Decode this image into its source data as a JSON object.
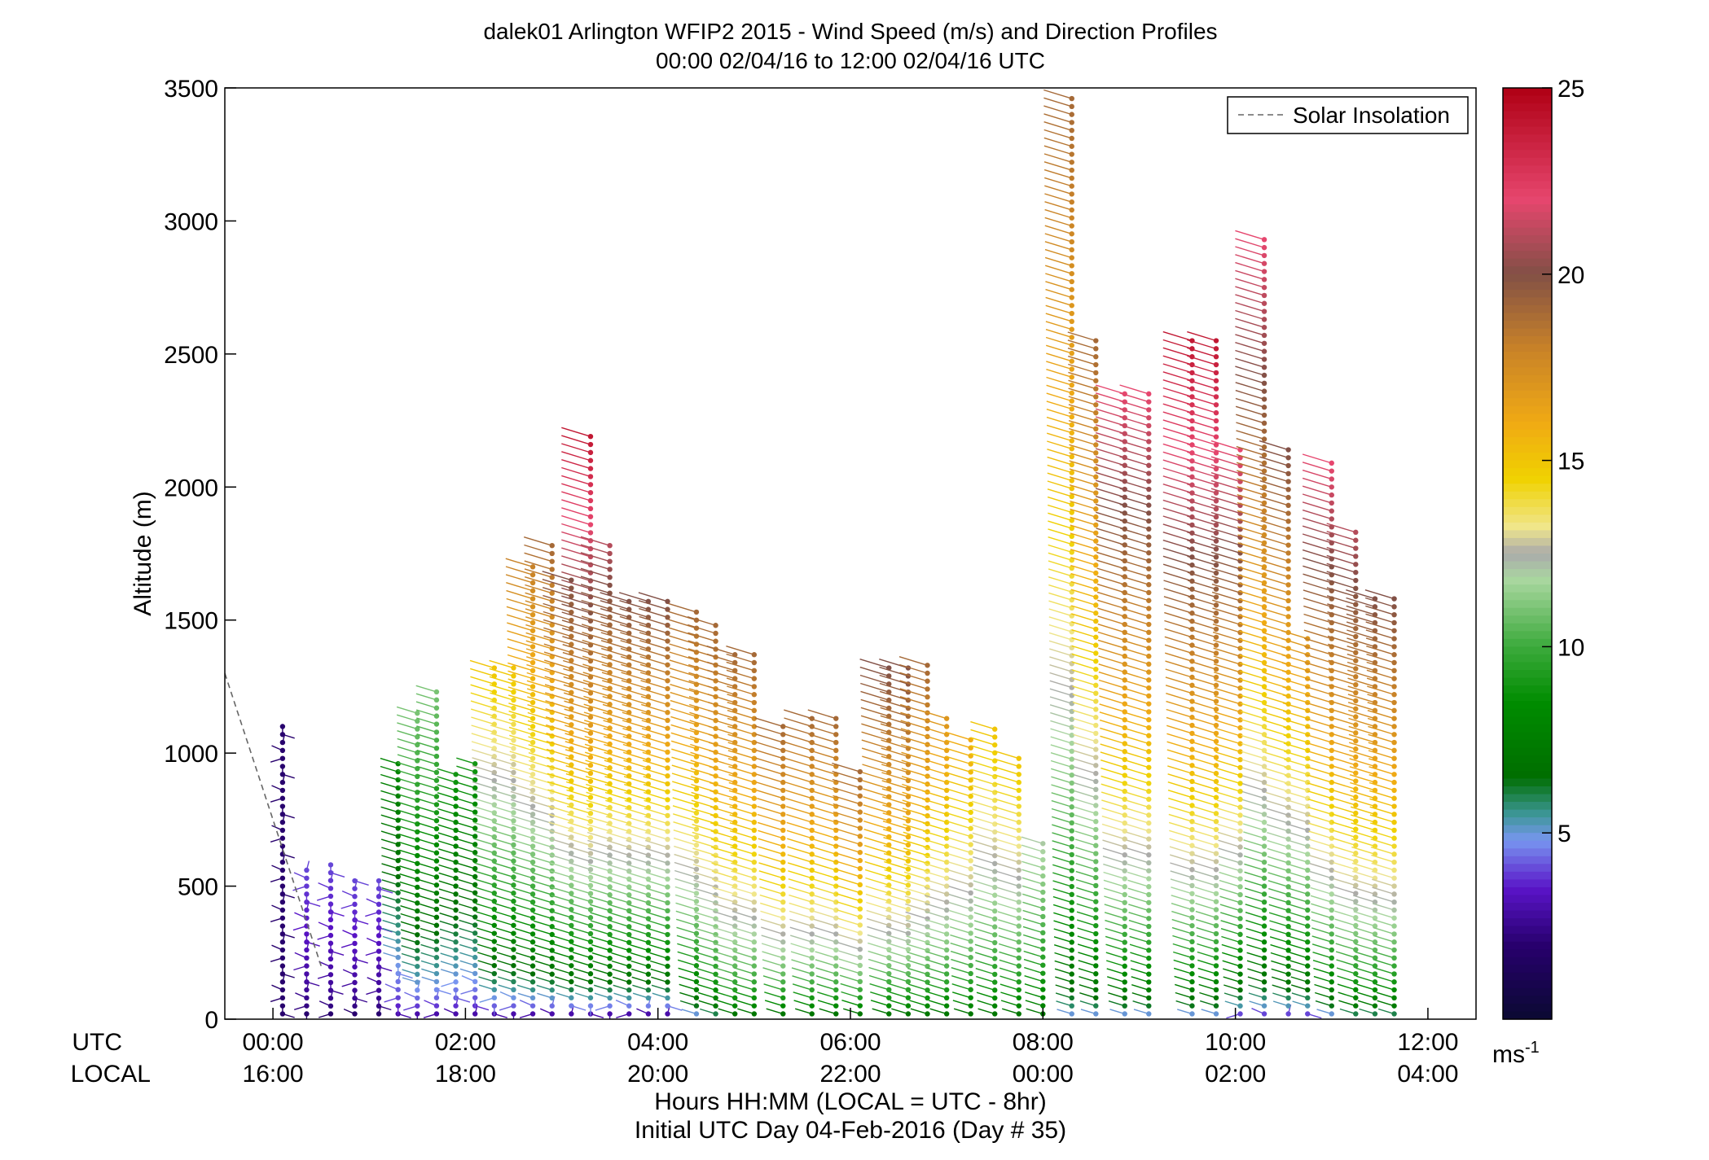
{
  "chart_data": {
    "type": "wind-barb profile",
    "title": "dalek01 Arlington WFIP2 2015 - Wind Speed (m/s) and Direction Profiles",
    "subtitle": "00:00 02/04/16 to 12:00 02/04/16  UTC",
    "ylabel": "Altitude (m)",
    "xlabel": "Hours HH:MM  (LOCAL = UTC - 8hr)",
    "xlabel2": "Initial UTC Day 04-Feb-2016 (Day # 35)",
    "row_label_utc": "UTC",
    "row_label_local": "LOCAL",
    "xlim_hours": [
      -0.5,
      12.5
    ],
    "ylim": [
      0,
      3500
    ],
    "yticks": [
      "0",
      "500",
      "1000",
      "1500",
      "2000",
      "2500",
      "3000",
      "3500"
    ],
    "xticks_utc": [
      "00:00",
      "02:00",
      "04:00",
      "06:00",
      "08:00",
      "10:00",
      "12:00"
    ],
    "xticks_local": [
      "16:00",
      "18:00",
      "20:00",
      "22:00",
      "00:00",
      "02:00",
      "04:00"
    ],
    "legend": {
      "label": "Solar Insolation",
      "position": "top-right"
    },
    "colorbar": {
      "range": [
        0,
        25
      ],
      "ticks": [
        "5",
        "10",
        "15",
        "20",
        "25"
      ],
      "unit": "ms",
      "unit_exp": "-1"
    },
    "solar_insolation_line": {
      "x": [
        -0.5,
        0.5
      ],
      "y": [
        1300,
        200
      ]
    },
    "profiles": [
      {
        "t": 0.1,
        "z": [
          20,
          1100
        ],
        "speed": [
          2,
          2
        ]
      },
      {
        "t": 0.35,
        "z": [
          20,
          560
        ],
        "speed": [
          2,
          4
        ]
      },
      {
        "t": 0.6,
        "z": [
          20,
          580
        ],
        "speed": [
          2,
          4
        ]
      },
      {
        "t": 0.85,
        "z": [
          20,
          520
        ],
        "speed": [
          2,
          4
        ]
      },
      {
        "t": 1.1,
        "z": [
          20,
          520
        ],
        "speed": [
          2,
          4
        ]
      },
      {
        "t": 1.3,
        "z": [
          20,
          960
        ],
        "speed": [
          3,
          8
        ]
      },
      {
        "t": 1.5,
        "z": [
          20,
          1150
        ],
        "speed": [
          3,
          11
        ]
      },
      {
        "t": 1.7,
        "z": [
          20,
          1230
        ],
        "speed": [
          3,
          11
        ]
      },
      {
        "t": 1.9,
        "z": [
          20,
          920
        ],
        "speed": [
          3,
          9
        ]
      },
      {
        "t": 2.1,
        "z": [
          20,
          960
        ],
        "speed": [
          3,
          9
        ]
      },
      {
        "t": 2.3,
        "z": [
          20,
          1320
        ],
        "speed": [
          3,
          15
        ]
      },
      {
        "t": 2.5,
        "z": [
          20,
          1320
        ],
        "speed": [
          3,
          15
        ]
      },
      {
        "t": 2.7,
        "z": [
          20,
          1700
        ],
        "speed": [
          3,
          18
        ]
      },
      {
        "t": 2.9,
        "z": [
          20,
          1780
        ],
        "speed": [
          3,
          19
        ]
      },
      {
        "t": 3.1,
        "z": [
          20,
          1650
        ],
        "speed": [
          3,
          20
        ]
      },
      {
        "t": 3.3,
        "z": [
          20,
          2190
        ],
        "speed": [
          3,
          24
        ]
      },
      {
        "t": 3.5,
        "z": [
          20,
          1780
        ],
        "speed": [
          3,
          21
        ]
      },
      {
        "t": 3.7,
        "z": [
          20,
          1570
        ],
        "speed": [
          3,
          20
        ]
      },
      {
        "t": 3.9,
        "z": [
          20,
          1570
        ],
        "speed": [
          3,
          20
        ]
      },
      {
        "t": 4.1,
        "z": [
          20,
          1570
        ],
        "speed": [
          3,
          20
        ]
      },
      {
        "t": 4.4,
        "z": [
          20,
          1530
        ],
        "speed": [
          5,
          19
        ]
      },
      {
        "t": 4.6,
        "z": [
          20,
          1480
        ],
        "speed": [
          6,
          19
        ]
      },
      {
        "t": 4.8,
        "z": [
          20,
          1370
        ],
        "speed": [
          7,
          19
        ]
      },
      {
        "t": 5.0,
        "z": [
          20,
          1370
        ],
        "speed": [
          7,
          19
        ]
      },
      {
        "t": 5.3,
        "z": [
          20,
          1100
        ],
        "speed": [
          7,
          19
        ]
      },
      {
        "t": 5.6,
        "z": [
          20,
          1130
        ],
        "speed": [
          7,
          19
        ]
      },
      {
        "t": 5.85,
        "z": [
          20,
          1130
        ],
        "speed": [
          7,
          19
        ]
      },
      {
        "t": 6.1,
        "z": [
          20,
          930
        ],
        "speed": [
          7,
          19
        ]
      },
      {
        "t": 6.4,
        "z": [
          20,
          1320
        ],
        "speed": [
          7,
          20
        ]
      },
      {
        "t": 6.6,
        "z": [
          20,
          1320
        ],
        "speed": [
          7,
          20
        ]
      },
      {
        "t": 6.8,
        "z": [
          20,
          1330
        ],
        "speed": [
          7,
          19
        ]
      },
      {
        "t": 7.0,
        "z": [
          20,
          1130
        ],
        "speed": [
          7,
          17
        ]
      },
      {
        "t": 7.25,
        "z": [
          20,
          1050
        ],
        "speed": [
          7,
          16
        ]
      },
      {
        "t": 7.5,
        "z": [
          20,
          1090
        ],
        "speed": [
          7,
          15
        ]
      },
      {
        "t": 7.75,
        "z": [
          20,
          980
        ],
        "speed": [
          7,
          15
        ]
      },
      {
        "t": 8.0,
        "z": [
          20,
          660
        ],
        "speed": [
          7,
          12
        ]
      },
      {
        "t": 8.3,
        "z": [
          20,
          3460
        ],
        "speed": [
          5,
          19
        ]
      },
      {
        "t": 8.55,
        "z": [
          20,
          2550
        ],
        "speed": [
          5,
          19
        ]
      },
      {
        "t": 8.85,
        "z": [
          20,
          2350
        ],
        "speed": [
          5,
          22
        ]
      },
      {
        "t": 9.1,
        "z": [
          20,
          2350
        ],
        "speed": [
          5,
          22
        ]
      },
      {
        "t": 9.55,
        "z": [
          20,
          2550
        ],
        "speed": [
          5,
          24
        ]
      },
      {
        "t": 9.8,
        "z": [
          20,
          2550
        ],
        "speed": [
          5,
          24
        ]
      },
      {
        "t": 10.05,
        "z": [
          20,
          2140
        ],
        "speed": [
          4,
          22
        ]
      },
      {
        "t": 10.3,
        "z": [
          20,
          2930
        ],
        "speed": [
          4,
          22
        ]
      },
      {
        "t": 10.55,
        "z": [
          20,
          2140
        ],
        "speed": [
          4,
          20
        ]
      },
      {
        "t": 10.75,
        "z": [
          20,
          1430
        ],
        "speed": [
          4,
          17
        ]
      },
      {
        "t": 11.0,
        "z": [
          20,
          2090
        ],
        "speed": [
          5,
          22
        ]
      },
      {
        "t": 11.25,
        "z": [
          20,
          1830
        ],
        "speed": [
          6,
          21
        ]
      },
      {
        "t": 11.45,
        "z": [
          20,
          1580
        ],
        "speed": [
          6,
          20
        ]
      },
      {
        "t": 11.65,
        "z": [
          20,
          1580
        ],
        "speed": [
          6,
          20
        ]
      }
    ]
  }
}
